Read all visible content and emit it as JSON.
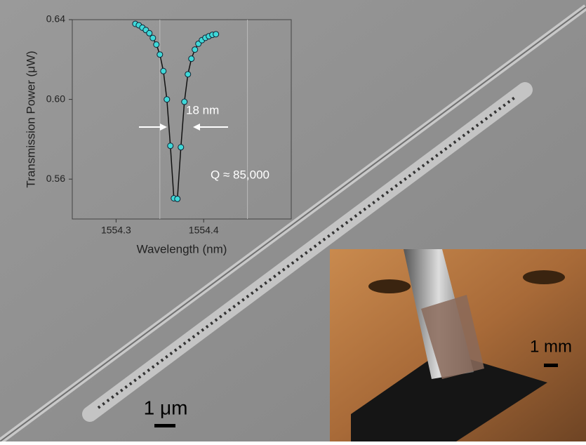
{
  "chart_data": {
    "type": "scatter",
    "x_label": "Wavelength (nm)",
    "y_label": "Transmission Power (μW)",
    "x": [
      1554.322,
      1554.326,
      1554.33,
      1554.334,
      1554.338,
      1554.342,
      1554.346,
      1554.35,
      1554.354,
      1554.358,
      1554.362,
      1554.366,
      1554.37,
      1554.374,
      1554.378,
      1554.382,
      1554.386,
      1554.39,
      1554.394,
      1554.398,
      1554.402,
      1554.406,
      1554.41,
      1554.414
    ],
    "values": [
      0.6379,
      0.6372,
      0.636,
      0.6348,
      0.6332,
      0.6308,
      0.6275,
      0.6225,
      0.6142,
      0.6,
      0.5767,
      0.5504,
      0.5501,
      0.576,
      0.5988,
      0.6126,
      0.6204,
      0.625,
      0.6279,
      0.6297,
      0.6309,
      0.6317,
      0.6324,
      0.6327
    ],
    "color": "#3fd8d8",
    "line": true,
    "xlim": [
      1554.25,
      1554.5
    ],
    "ylim": [
      0.54,
      0.64
    ],
    "xticks": [
      1554.3,
      1554.4
    ],
    "xgrid": [
      1554.35,
      1554.45
    ],
    "yticks": [
      0.56,
      {
        "value": 0.6,
        "label": "0.60"
      },
      0.64
    ],
    "annotations": [
      "18 nm",
      "Q ≈ 85,000"
    ]
  },
  "scale_bars": [
    "1 μm",
    "1 mm"
  ]
}
